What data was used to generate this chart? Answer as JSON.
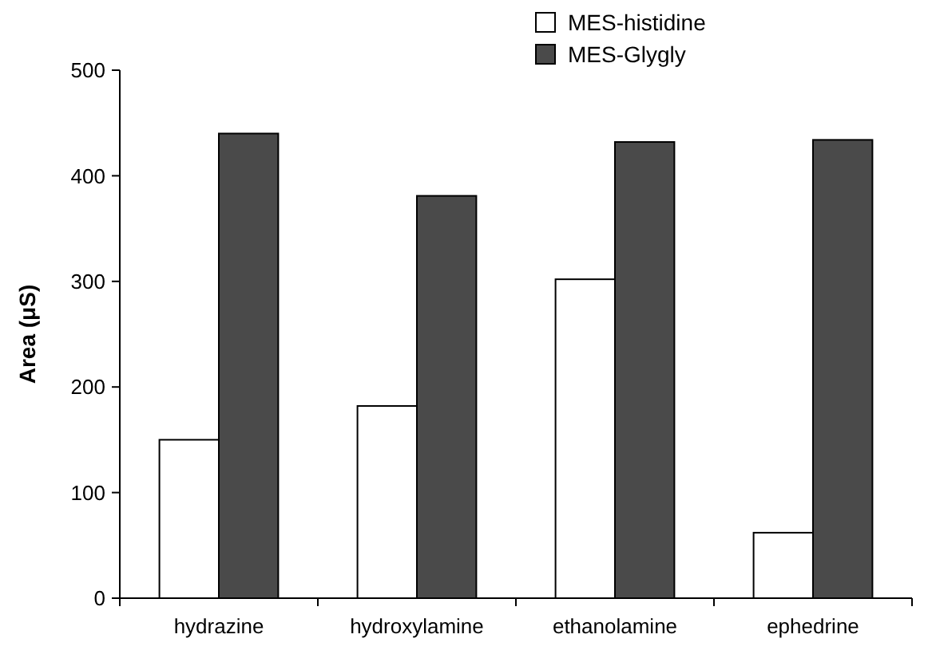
{
  "chart_data": {
    "type": "bar",
    "ylabel": "Area (μS)",
    "categories": [
      "hydrazine",
      "hydroxylamine",
      "ethanolamine",
      "ephedrine"
    ],
    "series": [
      {
        "name": "MES-histidine",
        "color": "#ffffff",
        "values": [
          150,
          182,
          302,
          62
        ]
      },
      {
        "name": "MES-Glygly",
        "color": "#4a4a4a",
        "values": [
          440,
          381,
          432,
          434
        ]
      }
    ],
    "ylim": [
      0,
      500
    ],
    "yticks": [
      0,
      100,
      200,
      300,
      400,
      500
    ],
    "grid": false,
    "legend": "top"
  }
}
